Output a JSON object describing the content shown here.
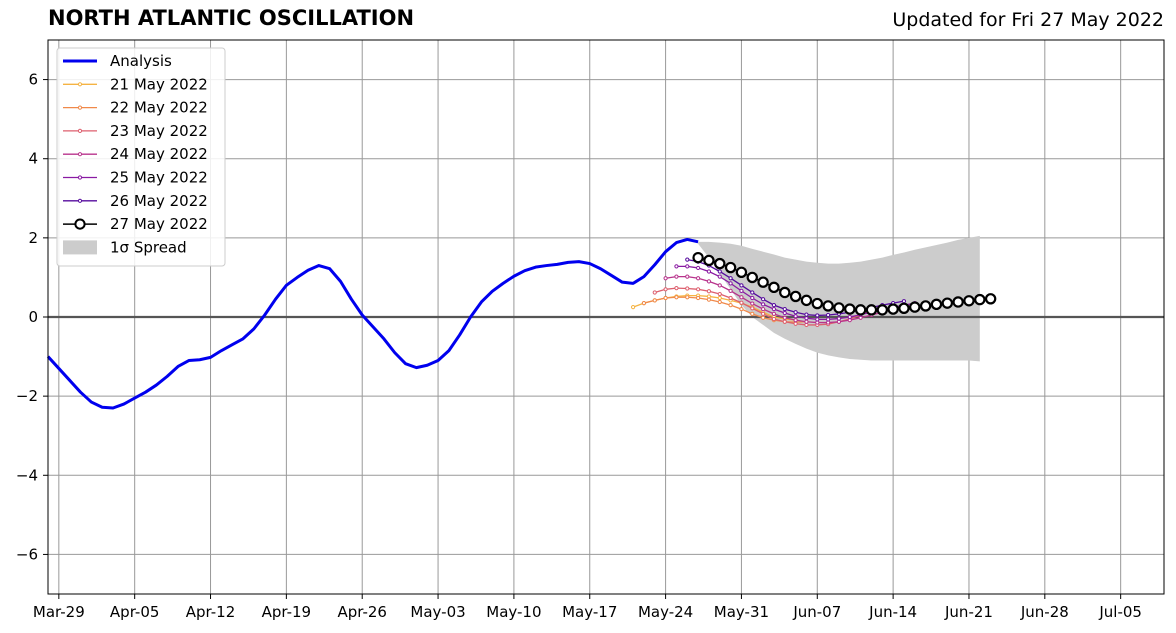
{
  "chart_data": {
    "type": "line",
    "title": "NORTH ATLANTIC OSCILLATION",
    "subtitle": "Updated for Fri 27 May 2022",
    "xlabel": "",
    "ylabel": "",
    "ylim": [
      -7,
      7
    ],
    "yticks": [
      "−6",
      "−4",
      "−2",
      "0",
      "2",
      "4",
      "6"
    ],
    "xticks": [
      "Mar-29",
      "Apr-05",
      "Apr-12",
      "Apr-19",
      "Apr-26",
      "May-03",
      "May-10",
      "May-17",
      "May-24",
      "May-31",
      "Jun-07",
      "Jun-14",
      "Jun-21",
      "Jun-28",
      "Jul-05"
    ],
    "xtick_days": [
      0,
      7,
      14,
      21,
      28,
      35,
      42,
      49,
      56,
      63,
      70,
      77,
      84,
      91,
      98
    ],
    "xlim": [
      -1,
      102
    ],
    "grid": true,
    "legend_position": "top-left",
    "colors": {
      "analysis": "#0000ee",
      "spread": "#cccccc",
      "zero_line": "#555555",
      "grid": "#999999"
    },
    "analysis": {
      "name": "Analysis",
      "start_day": -1,
      "values": [
        -1.0,
        -1.3,
        -1.6,
        -1.9,
        -2.15,
        -2.28,
        -2.3,
        -2.2,
        -2.05,
        -1.9,
        -1.72,
        -1.5,
        -1.25,
        -1.1,
        -1.08,
        -1.02,
        -0.85,
        -0.7,
        -0.55,
        -0.3,
        0.05,
        0.45,
        0.8,
        1.0,
        1.18,
        1.3,
        1.22,
        0.9,
        0.45,
        0.05,
        -0.25,
        -0.55,
        -0.9,
        -1.18,
        -1.28,
        -1.22,
        -1.1,
        -0.85,
        -0.45,
        0.0,
        0.38,
        0.65,
        0.85,
        1.03,
        1.17,
        1.26,
        1.3,
        1.33,
        1.38,
        1.4,
        1.35,
        1.22,
        1.05,
        0.88,
        0.85,
        1.02,
        1.32,
        1.65,
        1.88,
        1.96,
        1.9
      ]
    },
    "spread": {
      "name": "1σ Spread",
      "start_day": 59,
      "upper": [
        1.9,
        1.9,
        1.88,
        1.85,
        1.8,
        1.72,
        1.65,
        1.58,
        1.5,
        1.45,
        1.4,
        1.37,
        1.35,
        1.35,
        1.37,
        1.4,
        1.45,
        1.5,
        1.57,
        1.63,
        1.7,
        1.76,
        1.82,
        1.88,
        1.95,
        2.0,
        2.05
      ],
      "lower": [
        1.85,
        1.5,
        1.1,
        0.7,
        0.3,
        0.0,
        -0.2,
        -0.4,
        -0.55,
        -0.68,
        -0.8,
        -0.9,
        -0.97,
        -1.02,
        -1.06,
        -1.08,
        -1.1,
        -1.1,
        -1.1,
        -1.1,
        -1.1,
        -1.1,
        -1.1,
        -1.1,
        -1.1,
        -1.1,
        -1.12
      ]
    },
    "series": [
      {
        "name": "21 May 2022",
        "color": "#f5b342",
        "start_day": 53,
        "values": [
          0.25,
          0.35,
          0.42,
          0.48,
          0.52,
          0.54,
          0.54,
          0.52,
          0.48,
          0.42,
          0.35,
          0.25,
          0.12,
          0.0,
          -0.05,
          -0.08
        ]
      },
      {
        "name": "22 May 2022",
        "color": "#f0894a",
        "start_day": 54,
        "values": [
          0.35,
          0.42,
          0.48,
          0.5,
          0.5,
          0.48,
          0.44,
          0.38,
          0.3,
          0.2,
          0.08,
          -0.02,
          -0.08,
          -0.12,
          -0.13,
          -0.12
        ]
      },
      {
        "name": "23 May 2022",
        "color": "#dd5f6e",
        "start_day": 55,
        "values": [
          0.62,
          0.7,
          0.73,
          0.72,
          0.7,
          0.65,
          0.58,
          0.48,
          0.36,
          0.22,
          0.08,
          -0.05,
          -0.12,
          -0.17,
          -0.2,
          -0.2,
          -0.18,
          -0.12,
          -0.05,
          0.05,
          0.15,
          0.2
        ]
      },
      {
        "name": "24 May 2022",
        "color": "#b8338c",
        "start_day": 56,
        "values": [
          0.98,
          1.02,
          1.02,
          0.98,
          0.9,
          0.8,
          0.66,
          0.5,
          0.34,
          0.2,
          0.08,
          -0.02,
          -0.08,
          -0.12,
          -0.14,
          -0.14,
          -0.12,
          -0.08,
          -0.02,
          0.05,
          0.12,
          0.2,
          0.25,
          0.3
        ]
      },
      {
        "name": "25 May 2022",
        "color": "#8a1aa3",
        "start_day": 57,
        "values": [
          1.28,
          1.28,
          1.24,
          1.15,
          1.02,
          0.85,
          0.66,
          0.48,
          0.32,
          0.2,
          0.1,
          0.02,
          -0.03,
          -0.06,
          -0.06,
          -0.04,
          0.0,
          0.06,
          0.12,
          0.18,
          0.25,
          0.3,
          0.35
        ]
      },
      {
        "name": "26 May 2022",
        "color": "#560b9e",
        "start_day": 58,
        "values": [
          1.45,
          1.4,
          1.3,
          1.15,
          0.98,
          0.8,
          0.62,
          0.45,
          0.3,
          0.2,
          0.12,
          0.06,
          0.04,
          0.05,
          0.08,
          0.12,
          0.18,
          0.24,
          0.3,
          0.35,
          0.4
        ]
      },
      {
        "name": "27 May 2022",
        "color": "#000000",
        "start_day": 59,
        "values": [
          1.5,
          1.43,
          1.35,
          1.25,
          1.13,
          1.0,
          0.88,
          0.75,
          0.62,
          0.52,
          0.42,
          0.34,
          0.28,
          0.23,
          0.2,
          0.18,
          0.18,
          0.18,
          0.2,
          0.22,
          0.25,
          0.28,
          0.32,
          0.35,
          0.38,
          0.41,
          0.44,
          0.46
        ]
      }
    ]
  }
}
